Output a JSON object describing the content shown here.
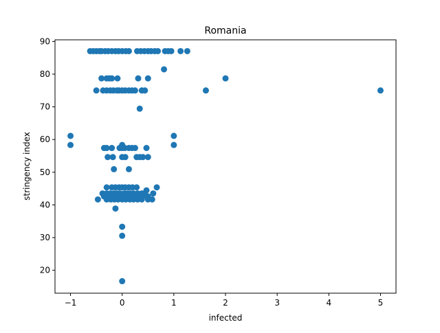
{
  "chart_data": {
    "type": "scatter",
    "title": "Romania",
    "xlabel": "infected",
    "ylabel": "stringency index",
    "xlim": [
      -1.3,
      5.3
    ],
    "ylim": [
      13.0,
      90.5
    ],
    "xticks": [
      -1,
      0,
      1,
      2,
      3,
      4,
      5
    ],
    "yticks": [
      20,
      30,
      40,
      50,
      60,
      70,
      80,
      90
    ],
    "grid": false,
    "legend": "none",
    "color": "#1f77b4",
    "points": [
      [
        -0.62,
        87.04
      ],
      [
        -0.56,
        87.04
      ],
      [
        -0.5,
        87.04
      ],
      [
        -0.44,
        87.04
      ],
      [
        -0.4,
        87.04
      ],
      [
        -0.33,
        87.04
      ],
      [
        -0.27,
        87.04
      ],
      [
        -0.2,
        87.04
      ],
      [
        -0.13,
        87.04
      ],
      [
        -0.07,
        87.04
      ],
      [
        0.0,
        87.04
      ],
      [
        0.07,
        87.04
      ],
      [
        0.13,
        87.04
      ],
      [
        0.29,
        87.04
      ],
      [
        0.36,
        87.04
      ],
      [
        0.43,
        87.04
      ],
      [
        0.5,
        87.04
      ],
      [
        0.56,
        87.04
      ],
      [
        0.63,
        87.04
      ],
      [
        0.69,
        87.04
      ],
      [
        0.83,
        87.04
      ],
      [
        0.89,
        87.04
      ],
      [
        0.95,
        87.04
      ],
      [
        1.13,
        87.04
      ],
      [
        1.26,
        87.04
      ],
      [
        0.81,
        81.48
      ],
      [
        -0.4,
        78.7
      ],
      [
        -0.3,
        78.7
      ],
      [
        -0.25,
        78.7
      ],
      [
        -0.2,
        78.7
      ],
      [
        -0.09,
        78.7
      ],
      [
        0.31,
        78.7
      ],
      [
        0.5,
        78.7
      ],
      [
        2.0,
        78.7
      ],
      [
        -0.5,
        75.0
      ],
      [
        -0.37,
        75.0
      ],
      [
        -0.3,
        75.0
      ],
      [
        -0.23,
        75.0
      ],
      [
        -0.17,
        75.0
      ],
      [
        -0.1,
        75.0
      ],
      [
        -0.06,
        75.0
      ],
      [
        0.0,
        75.0
      ],
      [
        0.06,
        75.0
      ],
      [
        0.13,
        75.0
      ],
      [
        0.19,
        75.0
      ],
      [
        0.25,
        75.0
      ],
      [
        0.38,
        75.0
      ],
      [
        0.44,
        75.0
      ],
      [
        1.62,
        75.0
      ],
      [
        5.0,
        75.0
      ],
      [
        0.34,
        69.44
      ],
      [
        -1.0,
        61.11
      ],
      [
        1.0,
        61.11
      ],
      [
        -1.0,
        58.33
      ],
      [
        0.0,
        58.33
      ],
      [
        1.0,
        58.33
      ],
      [
        -0.35,
        57.41
      ],
      [
        -0.3,
        57.41
      ],
      [
        -0.2,
        57.41
      ],
      [
        -0.05,
        57.41
      ],
      [
        0.0,
        57.41
      ],
      [
        0.05,
        57.41
      ],
      [
        0.13,
        57.41
      ],
      [
        0.19,
        57.41
      ],
      [
        0.25,
        57.41
      ],
      [
        0.47,
        57.41
      ],
      [
        -0.28,
        54.63
      ],
      [
        -0.18,
        54.63
      ],
      [
        0.0,
        54.63
      ],
      [
        0.06,
        54.63
      ],
      [
        0.28,
        54.63
      ],
      [
        0.34,
        54.63
      ],
      [
        0.4,
        54.63
      ],
      [
        0.5,
        54.63
      ],
      [
        -0.16,
        50.93
      ],
      [
        0.13,
        50.93
      ],
      [
        -0.3,
        45.37
      ],
      [
        -0.2,
        45.37
      ],
      [
        -0.13,
        45.37
      ],
      [
        -0.06,
        45.37
      ],
      [
        0.0,
        45.37
      ],
      [
        0.06,
        45.37
      ],
      [
        0.13,
        45.37
      ],
      [
        0.2,
        45.37
      ],
      [
        0.28,
        45.37
      ],
      [
        0.67,
        45.37
      ],
      [
        0.47,
        44.44
      ],
      [
        0.6,
        43.52
      ],
      [
        -0.38,
        43.52
      ],
      [
        -0.3,
        43.52
      ],
      [
        -0.23,
        43.52
      ],
      [
        -0.16,
        43.52
      ],
      [
        -0.1,
        43.52
      ],
      [
        -0.04,
        43.52
      ],
      [
        0.04,
        43.52
      ],
      [
        0.1,
        43.52
      ],
      [
        0.16,
        43.52
      ],
      [
        0.22,
        43.52
      ],
      [
        0.3,
        43.52
      ],
      [
        0.38,
        43.52
      ],
      [
        0.44,
        43.52
      ],
      [
        -0.35,
        42.59
      ],
      [
        -0.28,
        42.59
      ],
      [
        -0.2,
        42.59
      ],
      [
        -0.13,
        42.59
      ],
      [
        -0.05,
        42.59
      ],
      [
        0.03,
        42.59
      ],
      [
        0.1,
        42.59
      ],
      [
        0.18,
        42.59
      ],
      [
        0.25,
        42.59
      ],
      [
        0.33,
        42.59
      ],
      [
        0.4,
        42.59
      ],
      [
        0.5,
        42.59
      ],
      [
        -0.47,
        41.67
      ],
      [
        -0.3,
        41.67
      ],
      [
        -0.22,
        41.67
      ],
      [
        -0.15,
        41.67
      ],
      [
        -0.08,
        41.67
      ],
      [
        0.0,
        41.67
      ],
      [
        0.07,
        41.67
      ],
      [
        0.15,
        41.67
      ],
      [
        0.22,
        41.67
      ],
      [
        0.3,
        41.67
      ],
      [
        0.38,
        41.67
      ],
      [
        0.5,
        41.67
      ],
      [
        0.58,
        41.67
      ],
      [
        -0.13,
        38.89
      ],
      [
        0.0,
        33.33
      ],
      [
        0.0,
        30.56
      ],
      [
        0.0,
        16.67
      ]
    ]
  }
}
